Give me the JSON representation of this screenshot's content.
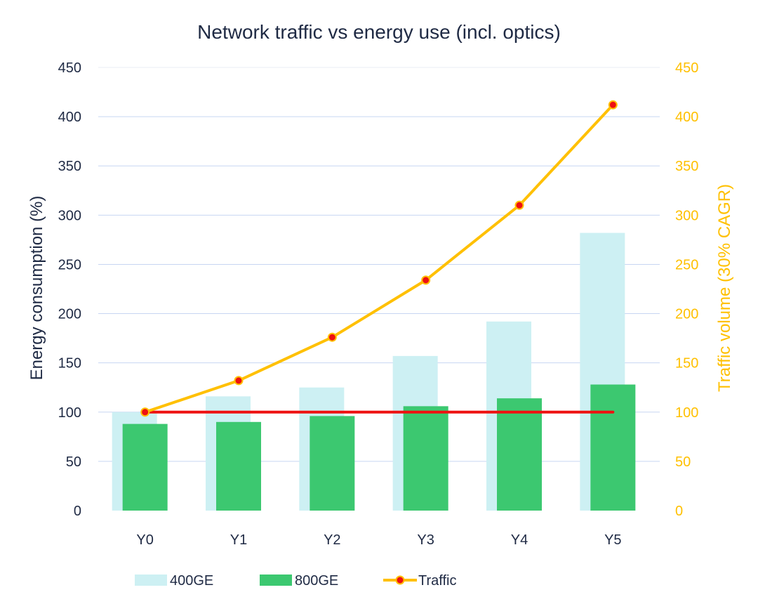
{
  "chart_data": {
    "type": "bar",
    "title": "Network traffic vs energy use (incl. optics)",
    "categories": [
      "Y0",
      "Y1",
      "Y2",
      "Y3",
      "Y4",
      "Y5"
    ],
    "series": [
      {
        "name": "400GE",
        "kind": "bar",
        "axis": "left",
        "color": "#cdf0f3",
        "values": [
          100,
          116,
          125,
          157,
          192,
          282
        ]
      },
      {
        "name": "800GE",
        "kind": "bar",
        "axis": "left",
        "color": "#3cc870",
        "values": [
          88,
          90,
          96,
          106,
          114,
          128
        ]
      },
      {
        "name": "Traffic",
        "kind": "line",
        "axis": "right",
        "color": "#ffc000",
        "marker_color": "#ee1111",
        "values": [
          100,
          132,
          176,
          234,
          310,
          412
        ]
      }
    ],
    "reference_line": {
      "color": "#ee1111",
      "value": 100
    },
    "y_left": {
      "label": "Energy consumption (%)",
      "ylim": [
        0,
        450
      ],
      "ticks": [
        0,
        50,
        100,
        150,
        200,
        250,
        300,
        350,
        400,
        450
      ]
    },
    "y_right": {
      "label": "Traffic volume (30% CAGR)",
      "ylim": [
        0,
        450
      ],
      "ticks": [
        0,
        50,
        100,
        150,
        200,
        250,
        300,
        350,
        400,
        450
      ],
      "color": "#ffc000"
    },
    "grid": true,
    "legend_position": "bottom"
  }
}
